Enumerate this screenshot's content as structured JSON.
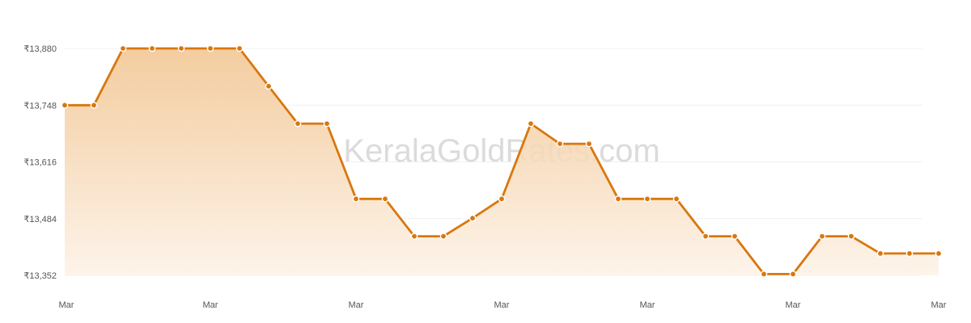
{
  "watermark": "KeralaGoldRates.com",
  "colors": {
    "line": "#d9770e",
    "point_fill": "#d9770e",
    "point_stroke": "#ffffff",
    "area_top": "#f1c48f",
    "area_bottom": "#fdf3e8",
    "grid": "#f0f0f0",
    "tick_text": "#555555"
  },
  "chart_data": {
    "type": "area",
    "title": "",
    "xlabel": "",
    "ylabel": "",
    "ylim": [
      13352,
      13880
    ],
    "yticks": [
      "₹13,880",
      "₹13,748",
      "₹13,616",
      "₹13,484",
      "₹13,352"
    ],
    "ytick_values": [
      13880,
      13748,
      13616,
      13484,
      13352
    ],
    "xticks": [
      "Mar",
      "Mar",
      "Mar",
      "Mar",
      "Mar",
      "Mar",
      "Mar"
    ],
    "grid": true,
    "legend": "none",
    "series": [
      {
        "values": [
          13748,
          13748,
          13880,
          13880,
          13880,
          13880,
          13880,
          13792,
          13705,
          13705,
          13530,
          13530,
          13443,
          13443,
          13485,
          13530,
          13705,
          13658,
          13658,
          13530,
          13530,
          13530,
          13443,
          13443,
          13355,
          13355,
          13443,
          13443,
          13403,
          13403,
          13403
        ]
      }
    ]
  }
}
